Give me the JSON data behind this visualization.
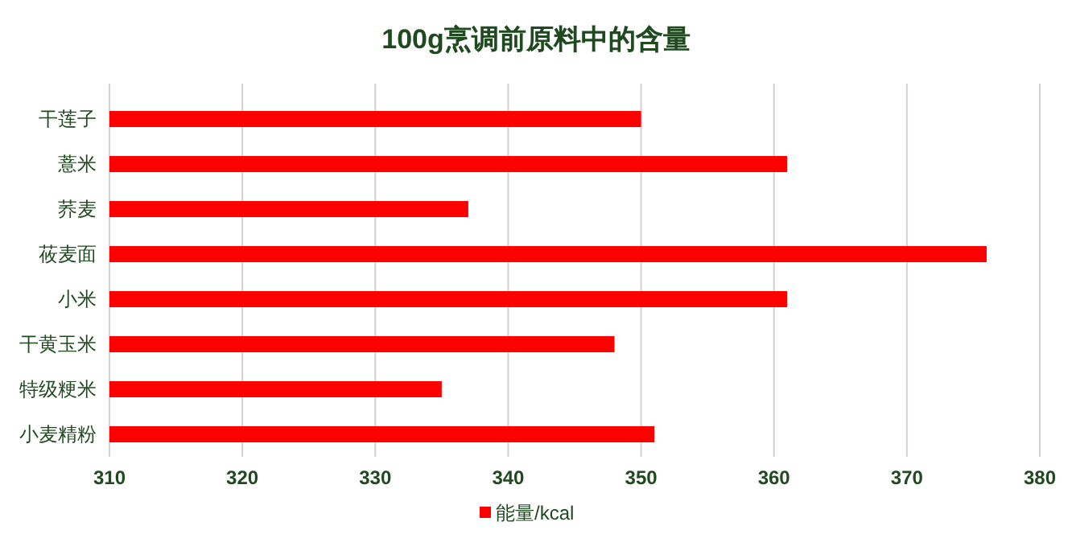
{
  "chart_data": {
    "type": "bar",
    "orientation": "horizontal",
    "title": "100g烹调前原料中的含量",
    "categories": [
      "干莲子",
      "薏米",
      "荞麦",
      "莜麦面",
      "小米",
      "干黄玉米",
      "特级粳米",
      "小麦精粉"
    ],
    "series": [
      {
        "name": "能量/kcal",
        "color": "#ff0000",
        "values": [
          350,
          361,
          337,
          376,
          361,
          348,
          335,
          351
        ]
      }
    ],
    "xlim": [
      310,
      380
    ],
    "xticks": [
      310,
      320,
      330,
      340,
      350,
      360,
      370,
      380
    ],
    "grid": "x",
    "legend": "bottom"
  }
}
